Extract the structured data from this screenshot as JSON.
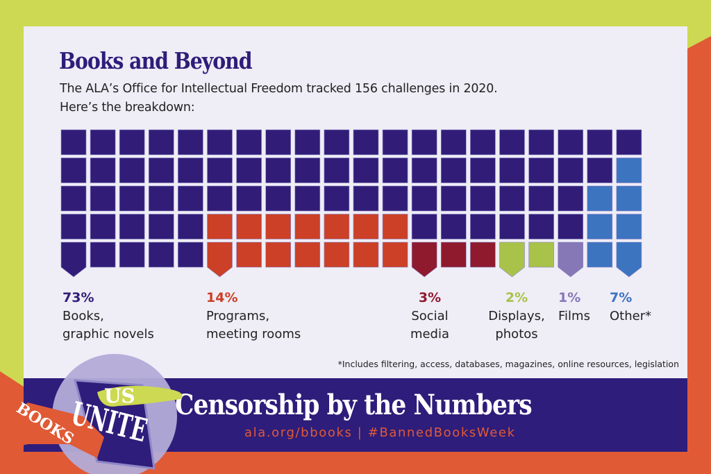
{
  "colors": {
    "lime": "#cdd952",
    "orange_bg": "#e05a36",
    "panel": "#efedf6",
    "navy": "#2e1d7a"
  },
  "header": {
    "title": "Books and Beyond",
    "subtitle_line1": "The ALA’s Office for Intellectual Freedom tracked 156 challenges in 2020.",
    "subtitle_line2": "Here’s the breakdown:"
  },
  "chart_data": {
    "type": "waffle",
    "title": "Books and Beyond",
    "total_challenges": 156,
    "year": 2020,
    "grid_columns": 20,
    "grid_rows": 5,
    "categories": [
      {
        "percent_label": "73%",
        "label_line1": "Books,",
        "label_line2": "graphic novels",
        "value": 73,
        "color": "#311d78"
      },
      {
        "percent_label": "14%",
        "label_line1": "Programs,",
        "label_line2": "meeting rooms",
        "value": 14,
        "color": "#cb4026"
      },
      {
        "percent_label": "3%",
        "label_line1": "Social",
        "label_line2": "media",
        "value": 3,
        "color": "#8f1a2e"
      },
      {
        "percent_label": "2%",
        "label_line1": "Displays,",
        "label_line2": "photos",
        "value": 2,
        "color": "#a8c24a"
      },
      {
        "percent_label": "1%",
        "label_line1": "Films",
        "label_line2": "",
        "value": 1,
        "color": "#8677b6"
      },
      {
        "percent_label": "7%",
        "label_line1": "Other*",
        "label_line2": "",
        "value": 7,
        "color": "#3c74c0"
      }
    ],
    "footnote": "*Includes filtering, access, databases, magazines, online resources, legislation"
  },
  "banner": {
    "title": "Censorship by the Numbers",
    "links": "ala.org/bbooks  |  #BannedBooksWeek"
  },
  "logo": {
    "text_books": "BOOKS",
    "text_unite": "UNITE",
    "text_us": "US"
  }
}
